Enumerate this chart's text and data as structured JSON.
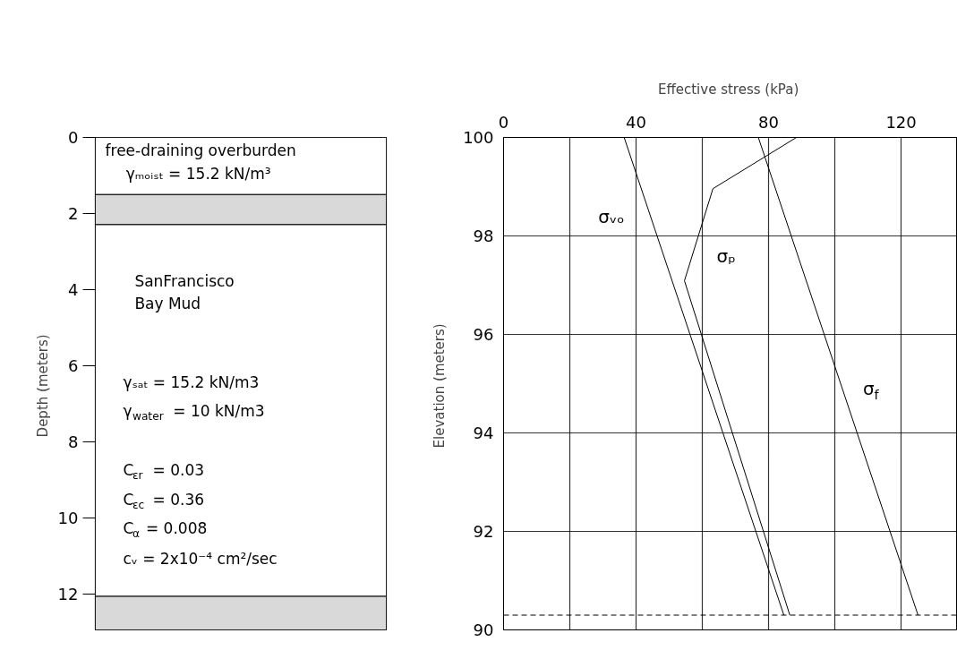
{
  "chart_data": [
    {
      "type": "bar",
      "stacked": true,
      "categories": [
        null
      ],
      "ylabel": "Depth  (meters)",
      "ylim": [
        12.93,
        0
      ],
      "yticks": [
        0,
        2,
        4,
        6,
        8,
        10,
        12
      ],
      "series": [
        {
          "color": "#ffffff",
          "values": [
            1.5
          ]
        },
        {
          "color": "#d9d9d9",
          "values": [
            0.79
          ]
        },
        {
          "color": "#ffffff",
          "values": [
            9.76
          ]
        },
        {
          "color": "#d9d9d9",
          "values": [
            0.88
          ]
        }
      ],
      "annotations": [
        "free-draining    overburden",
        "γₘₒᵢₛₜ = 15.2 kN/m³",
        "SanFrancisco",
        "Bay Mud",
        "γₛₐₜ = 15.2 kN/m3",
        "γ$_{water}$ = 10 kN/m3",
        "C$_{εr}$ = 0.03",
        "C$_{εc}$ = 0.36",
        "C$_{α}$ = 0.008",
        "cᵥ = 2x10⁻⁴  cm²/sec"
      ]
    },
    {
      "type": "line",
      "xlabel": "Effective stress  (kPa)",
      "ylabel": "Elevation  (meters)",
      "xlim": [
        0,
        137
      ],
      "xticks": [
        0,
        {
          "value": 20,
          "label": null
        },
        40,
        {
          "value": 60,
          "label": null
        },
        80,
        {
          "value": 100,
          "label": null
        },
        120
      ],
      "ylim": [
        90,
        100
      ],
      "yticks": [
        90,
        92,
        94,
        96,
        98,
        100
      ],
      "grid": true,
      "line_style": "solid",
      "series": [
        {
          "color": "#000000",
          "x": [
            36.4,
            84.6
          ],
          "values": [
            100,
            90.3
          ]
        },
        {
          "color": "#000000",
          "x": [
            88.4,
            63.2,
            54.6,
            86.4
          ],
          "values": [
            100,
            98.96,
            97.09,
            90.3
          ]
        },
        {
          "color": "#000000",
          "x": [
            76.9,
            125.1
          ],
          "values": [
            100,
            90.3
          ]
        }
      ],
      "ref_lines": [
        {
          "axis": "y",
          "value": 90.3,
          "line_style": "dashed",
          "color": "#000000"
        }
      ],
      "annotations": [
        "σᵥₒ",
        "σₚ",
        "σ$_{f}$"
      ]
    }
  ]
}
